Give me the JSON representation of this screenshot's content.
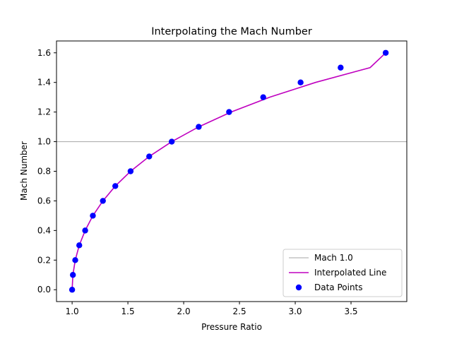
{
  "chart_data": {
    "type": "line",
    "title": "Interpolating the Mach Number",
    "xlabel": "Pressure Ratio",
    "ylabel": "Mach Number",
    "xlim": [
      0.86,
      4.0
    ],
    "ylim": [
      -0.08,
      1.68
    ],
    "xticks": [
      1.0,
      1.5,
      2.0,
      2.5,
      3.0,
      3.5
    ],
    "xtick_labels": [
      "1.0",
      "1.5",
      "2.0",
      "2.5",
      "3.0",
      "3.5"
    ],
    "yticks": [
      0.0,
      0.2,
      0.4,
      0.6,
      0.8,
      1.0,
      1.2,
      1.4,
      1.6
    ],
    "ytick_labels": [
      "0.0",
      "0.2",
      "0.4",
      "0.6",
      "0.8",
      "1.0",
      "1.2",
      "1.4",
      "1.6"
    ],
    "grid": false,
    "legend_position": "lower-right",
    "reference_line": {
      "name": "Mach 1.0",
      "y": 1.0,
      "color": "#a6a6a6"
    },
    "series": [
      {
        "name": "Interpolated Line",
        "kind": "line",
        "color": "#bf00bf",
        "x": [
          1.0,
          1.007,
          1.028,
          1.064,
          1.117,
          1.186,
          1.276,
          1.387,
          1.524,
          1.691,
          1.893,
          2.135,
          2.425,
          2.771,
          3.182,
          3.671,
          3.811
        ],
        "y": [
          0.0,
          0.1,
          0.2,
          0.3,
          0.4,
          0.5,
          0.6,
          0.7,
          0.8,
          0.9,
          1.0,
          1.1,
          1.2,
          1.3,
          1.4,
          1.5,
          1.6
        ]
      },
      {
        "name": "Data Points",
        "kind": "scatter",
        "color": "#0000ff",
        "x": [
          1.0,
          1.007,
          1.028,
          1.064,
          1.117,
          1.186,
          1.276,
          1.387,
          1.524,
          1.691,
          1.893,
          2.135,
          2.407,
          2.713,
          3.048,
          3.407,
          3.811
        ],
        "y": [
          0.0,
          0.1,
          0.2,
          0.3,
          0.4,
          0.5,
          0.6,
          0.7,
          0.8,
          0.9,
          1.0,
          1.1,
          1.2,
          1.3,
          1.4,
          1.5,
          1.6
        ]
      }
    ]
  }
}
